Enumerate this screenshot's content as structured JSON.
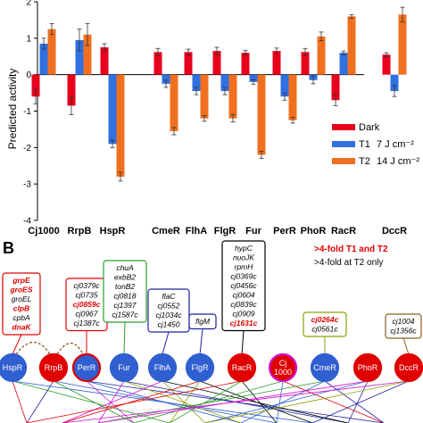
{
  "panel_b_label": "B",
  "chart_data": {
    "type": "bar",
    "ylabel": "Predicted activity",
    "ylim": [
      -4,
      2
    ],
    "yticks": [
      -4,
      -3,
      -2,
      -1,
      0,
      1,
      2
    ],
    "categories": [
      "Cj1000",
      "RrpB",
      "HspR",
      "CmeR",
      "FlhA",
      "FlgR",
      "Fur",
      "PerR",
      "PhoR",
      "RacR",
      "DccR"
    ],
    "series": [
      {
        "name": "Dark",
        "color": "#e8001c",
        "values": [
          -0.6,
          -0.85,
          0.75,
          0.62,
          0.62,
          0.65,
          0.6,
          0.65,
          0.62,
          -0.7,
          0.55
        ],
        "errors": [
          0.2,
          0.25,
          0.1,
          0.1,
          0.08,
          0.1,
          0.06,
          0.08,
          0.1,
          0.15,
          0.05
        ]
      },
      {
        "name": "T1",
        "color": "#3070e0",
        "values": [
          0.85,
          0.95,
          -1.9,
          -0.25,
          -0.45,
          -0.45,
          -0.2,
          -0.6,
          -0.15,
          0.6,
          -0.45
        ],
        "errors": [
          0.15,
          0.3,
          0.1,
          0.1,
          0.1,
          0.1,
          0.06,
          0.1,
          0.1,
          0.05,
          0.15
        ]
      },
      {
        "name": "T2",
        "color": "#f07020",
        "values": [
          1.25,
          1.1,
          -2.8,
          -1.55,
          -1.2,
          -1.2,
          -2.2,
          -1.25,
          1.05,
          1.6,
          1.65
        ]
      }
    ],
    "t2_errors": [
      0.15,
      0.3,
      0.12,
      0.1,
      0.08,
      0.1,
      0.1,
      0.08,
      0.12,
      0.05,
      0.2
    ],
    "legend": [
      {
        "name": "Dark",
        "dose": ""
      },
      {
        "name": "T1",
        "dose": "7 J cm⁻²"
      },
      {
        "name": "T2",
        "dose": "14 J cm⁻²"
      }
    ],
    "legend_position": "right"
  },
  "network": {
    "legend_line1": ">4-fold T1 and T2",
    "legend_line2": ">4-fold at T2 only",
    "nodes": [
      {
        "label": "HspR",
        "color": "#2f5fd0",
        "ring": "#2f5fd0"
      },
      {
        "label": "RrpB",
        "color": "#e00000",
        "ring": "#e00000"
      },
      {
        "label": "PerR",
        "color": "#2f5fd0",
        "ring": "#e00000"
      },
      {
        "label": "Fur",
        "color": "#2f5fd0",
        "ring": "#2f5fd0"
      },
      {
        "label": "FlhA",
        "color": "#2f5fd0",
        "ring": "#2f5fd0"
      },
      {
        "label": "FlgR",
        "color": "#2f5fd0",
        "ring": "#2f5fd0"
      },
      {
        "label": "RacR",
        "color": "#e00000",
        "ring": "#e00000"
      },
      {
        "label": "Cj\n1000",
        "color": "#e00000",
        "ring": "#d010d0"
      },
      {
        "label": "CmeR",
        "color": "#2f5fd0",
        "ring": "#2f5fd0"
      },
      {
        "label": "PhoR",
        "color": "#e00000",
        "ring": "#e00000"
      },
      {
        "label": "DccR",
        "color": "#e00000",
        "ring": "#e00000"
      }
    ],
    "gene_boxes": [
      {
        "border": "#e00000",
        "genes": [
          {
            "t": "grpE",
            "h": true
          },
          {
            "t": "groES",
            "h": true
          },
          {
            "t": "groEL",
            "h": false
          },
          {
            "t": "clpB",
            "h": true
          },
          {
            "t": "cpbA",
            "h": false
          },
          {
            "t": "dnaK",
            "h": true
          }
        ]
      },
      {
        "border": "#e00000",
        "genes": [
          {
            "t": "cj0379c",
            "h": false
          },
          {
            "t": "cj0735",
            "h": false
          },
          {
            "t": "cj0859c",
            "h": true
          },
          {
            "t": "cj0967",
            "h": false
          },
          {
            "t": "cj1387c",
            "h": false
          }
        ]
      },
      {
        "border": "#2a9d2a",
        "genes": [
          {
            "t": "chuA",
            "h": false
          },
          {
            "t": "exbB2",
            "h": false
          },
          {
            "t": "tonB2",
            "h": false
          },
          {
            "t": "cj0818",
            "h": false
          },
          {
            "t": "cj1397",
            "h": false
          },
          {
            "t": "cj1587c",
            "h": false
          }
        ]
      },
      {
        "border": "#2020a0",
        "genes": [
          {
            "t": "flaC",
            "h": false
          },
          {
            "t": "cj0552",
            "h": false
          },
          {
            "t": "cj1034c",
            "h": false
          },
          {
            "t": "cj1450",
            "h": false
          }
        ]
      },
      {
        "border": "#2020a0",
        "genes": [
          {
            "t": "flgM",
            "h": false
          }
        ]
      },
      {
        "border": "#000000",
        "genes": [
          {
            "t": "hypC",
            "h": false
          },
          {
            "t": "nuoJK",
            "h": false
          },
          {
            "t": "rpmH",
            "h": false
          },
          {
            "t": "cj0369c",
            "h": false
          },
          {
            "t": "cj0456c",
            "h": false
          },
          {
            "t": "cj0604",
            "h": false
          },
          {
            "t": "cj0839c",
            "h": false
          },
          {
            "t": "cj0909",
            "h": false
          },
          {
            "t": "cj1631c",
            "h": true
          }
        ]
      },
      {
        "border": "#8aa000",
        "genes": [
          {
            "t": "cj0264c",
            "h": true
          },
          {
            "t": "cj0561c",
            "h": false
          }
        ]
      },
      {
        "border": "#8a6020",
        "genes": [
          {
            "t": "cj1004",
            "h": false
          },
          {
            "t": "cj1356c",
            "h": false
          }
        ]
      }
    ]
  }
}
